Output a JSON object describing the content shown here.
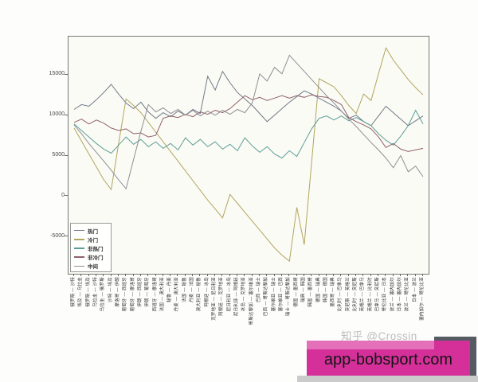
{
  "watermark": {
    "text": "知乎 @Crossin"
  },
  "banner": {
    "text": "app-bobsport.com"
  },
  "colors": {
    "banner_bg": "#d5309a",
    "banner_strip": "#e470b9",
    "banner_shadow": "#565b62",
    "plot_bg": "#fbfbf5",
    "axis": "#777777",
    "tick_text": "#4a4a4a",
    "watermark_text": "#bcbcbc"
  },
  "chart_data": {
    "type": "line",
    "title": "",
    "xlabel": "",
    "ylabel": "",
    "grid": false,
    "legend_position": "lower-left",
    "ylim": [
      -9600,
      19700
    ],
    "yticks": [
      -5000,
      0,
      5000,
      10000,
      15000
    ],
    "categories": [
      "俄罗斯 — 沙特",
      "埃及 — 乌拉圭",
      "俄罗斯 — 埃及",
      "乌拉圭 — 沙特",
      "乌拉圭 — 俄罗斯",
      "沙特 — 埃及",
      "摩洛哥 — 伊朗",
      "葡萄牙 — 西班牙",
      "葡萄牙 — 摩洛哥",
      "伊朗 — 西班牙",
      "伊朗 — 葡萄牙",
      "西班牙 — 摩洛哥",
      "法国 — 澳大利亚",
      "秘鲁 — 丹麦",
      "丹麦 — 澳大利亚",
      "法国 — 秘鲁",
      "丹麦 — 法国",
      "澳大利亚 — 秘鲁",
      "阿根廷 — 冰岛",
      "克罗地亚 — 尼日利亚",
      "阿根廷 — 克罗地亚",
      "尼日利亚 — 冰岛",
      "尼日利亚 — 阿根廷",
      "冰岛 — 克罗地亚",
      "哥斯达黎加 — 塞尔维亚",
      "巴西 — 瑞士",
      "巴西 — 哥斯达黎加",
      "塞尔维亚 — 瑞士",
      "塞尔维亚 — 巴西",
      "瑞士 — 哥斯达黎加",
      "德国 — 墨西哥",
      "瑞典 — 韩国",
      "韩国 — 墨西哥",
      "德国 — 瑞典",
      "韩国 — 德国",
      "墨西哥 — 瑞典",
      "比利时 — 巴拿马",
      "突尼斯 — 英格兰",
      "比利时 — 突尼斯",
      "英格兰 — 巴拿马",
      "英格兰 — 比利时",
      "巴拿马 — 突尼斯",
      "哥伦比亚 — 日本",
      "波兰 — 塞内加尔",
      "日本 — 塞内加尔",
      "波兰 — 哥伦比亚",
      "日本 — 波兰",
      "塞内加尔 — 哥伦比亚"
    ],
    "series": [
      {
        "name": "热门",
        "color": "#6f7a88",
        "values": [
          10700,
          11300,
          11100,
          11900,
          12800,
          13800,
          12600,
          11500,
          10800,
          11600,
          10400,
          9600,
          10300,
          9800,
          10500,
          10000,
          10700,
          10200,
          14800,
          13100,
          15400,
          14000,
          12800,
          12000,
          11200,
          10200,
          9200,
          10000,
          10800,
          11600,
          12300,
          13000,
          12600,
          12100,
          11600,
          11100,
          10500,
          9600,
          10000,
          9200,
          8700,
          9900,
          11100,
          10300,
          9500,
          8700,
          9300,
          9900
        ]
      },
      {
        "name": "冷门",
        "color": "#b1a55e",
        "values": [
          8400,
          6800,
          5200,
          3600,
          2000,
          800,
          6500,
          12000,
          11200,
          10300,
          9100,
          7900,
          6700,
          5500,
          4300,
          3100,
          1900,
          700,
          -500,
          -1600,
          -2700,
          200,
          -900,
          -2000,
          -3100,
          -4200,
          -5300,
          -6400,
          -7300,
          -8050,
          -1400,
          -6000,
          4200,
          14500,
          14000,
          13500,
          12400,
          11200,
          10200,
          12600,
          11800,
          15100,
          18300,
          16800,
          15600,
          14400,
          13400,
          12500
        ]
      },
      {
        "name": "非热门",
        "color": "#5d9e98",
        "values": [
          8900,
          8100,
          7300,
          6500,
          5800,
          5300,
          6300,
          7300,
          6400,
          7000,
          6100,
          6700,
          5900,
          6500,
          5700,
          7200,
          6300,
          7000,
          6100,
          6700,
          5800,
          6400,
          5600,
          7200,
          6200,
          5400,
          6100,
          5200,
          4700,
          5600,
          4900,
          6600,
          8300,
          9600,
          9900,
          9400,
          9900,
          9300,
          9700,
          9200,
          8700,
          7700,
          6900,
          6300,
          7400,
          8700,
          10600,
          8900
        ]
      },
      {
        "name": "非冷门",
        "color": "#90616c",
        "values": [
          9100,
          9500,
          8900,
          9400,
          9000,
          8400,
          8100,
          8300,
          7700,
          7800,
          7300,
          7500,
          9600,
          9900,
          9700,
          10100,
          9800,
          10400,
          10100,
          10600,
          10300,
          10800,
          11600,
          12400,
          11900,
          12200,
          11800,
          12100,
          12400,
          12100,
          12400,
          12200,
          12500,
          12300,
          12200,
          11800,
          11300,
          9700,
          9200,
          8800,
          8300,
          7300,
          6000,
          6500,
          5800,
          5500,
          5700,
          5900
        ]
      },
      {
        "name": "中间",
        "color": "#8f8e94",
        "values": [
          8800,
          7700,
          6500,
          5400,
          4300,
          3200,
          2000,
          900,
          4500,
          8000,
          11300,
          10400,
          10900,
          10200,
          10700,
          10000,
          10600,
          9900,
          10500,
          10000,
          10600,
          10100,
          10700,
          10300,
          11500,
          15100,
          14200,
          15900,
          15100,
          17400,
          16400,
          15400,
          14400,
          13400,
          12400,
          11500,
          10500,
          9500,
          8600,
          7600,
          6600,
          5700,
          4700,
          3500,
          5000,
          3000,
          3700,
          2400
        ]
      }
    ]
  }
}
